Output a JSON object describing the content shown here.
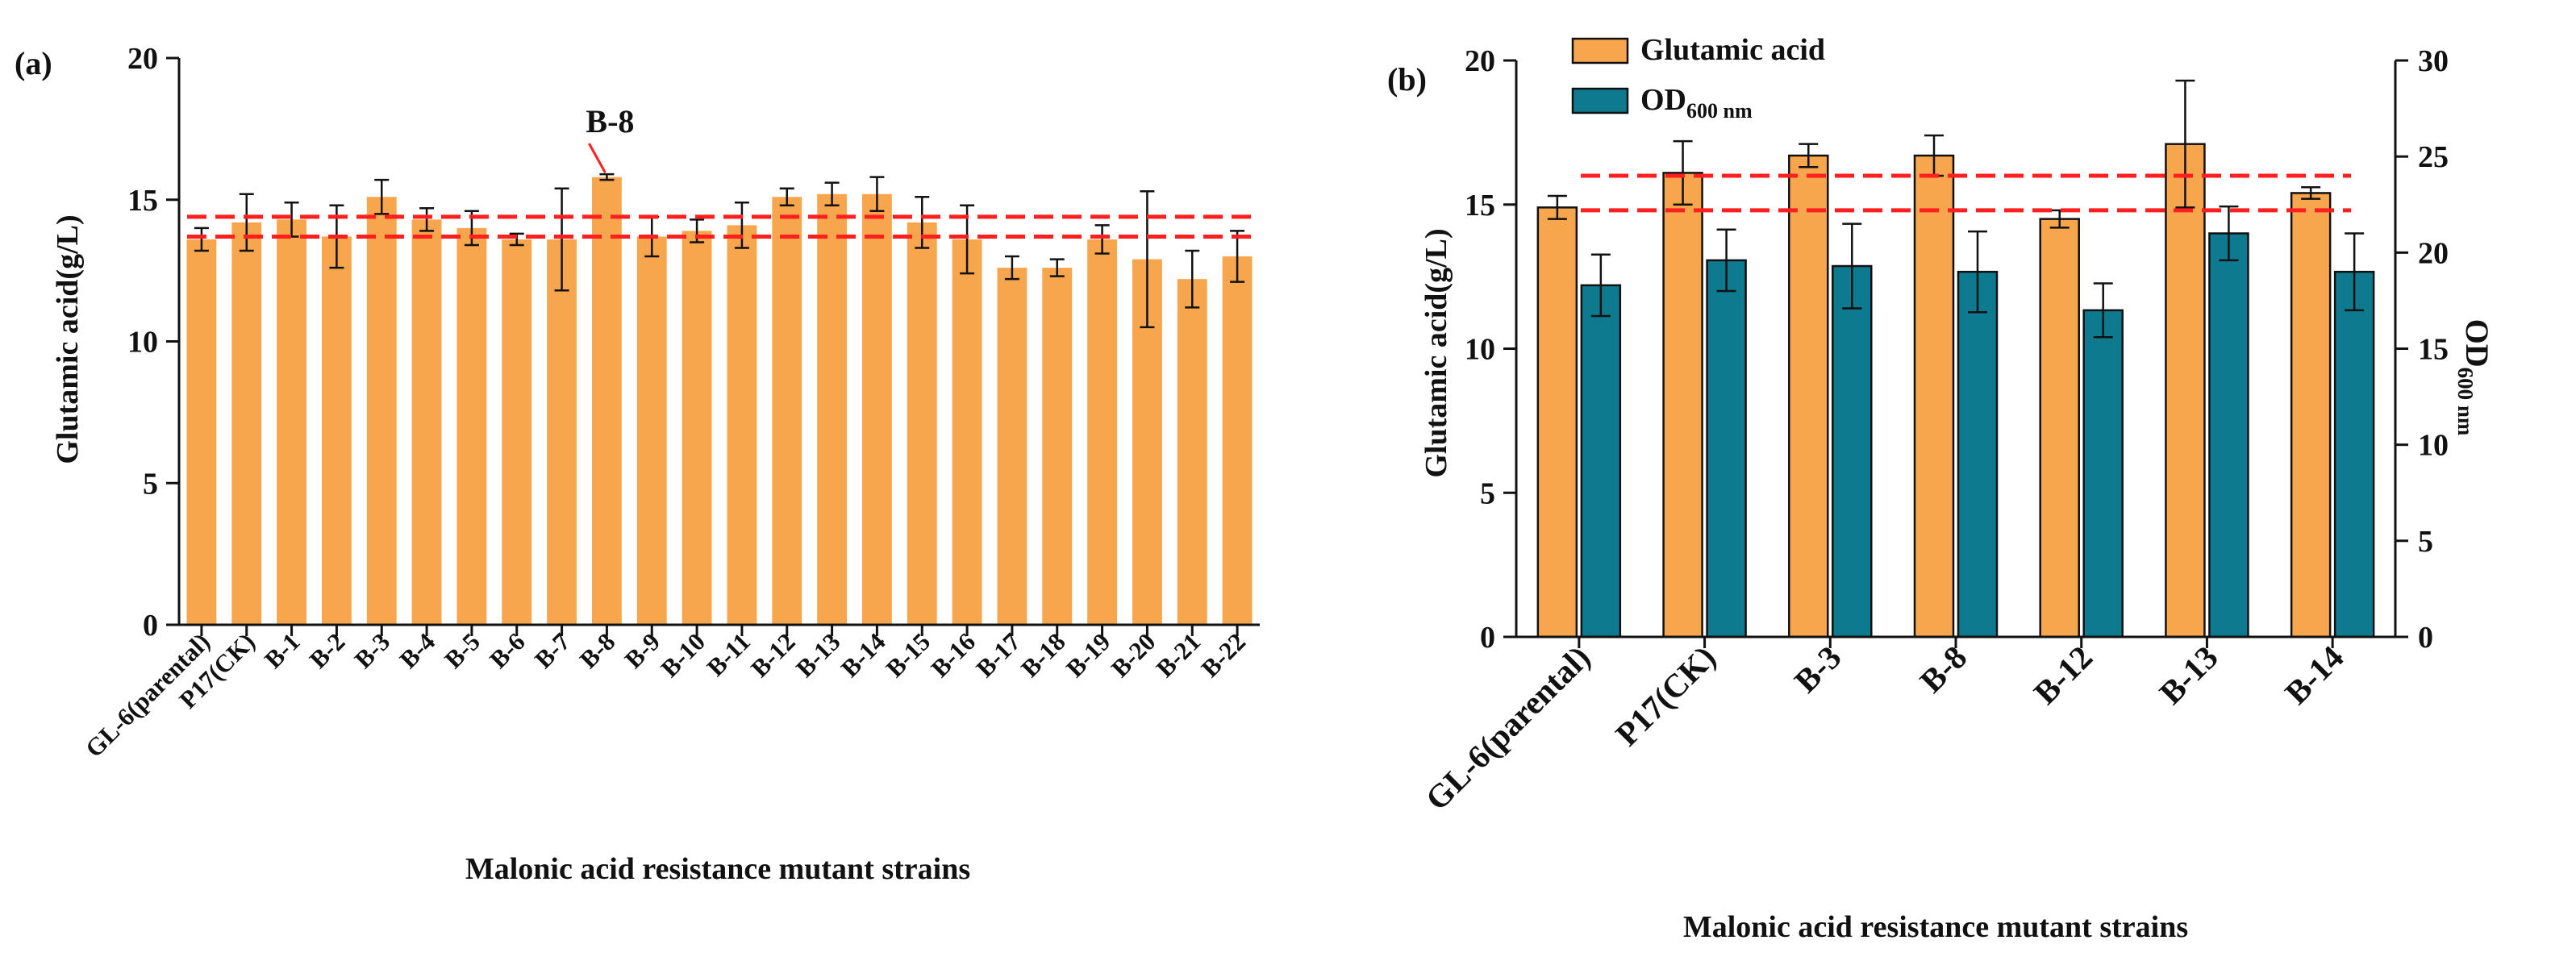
{
  "colors": {
    "orange": "#F8A64D",
    "teal": "#0E7A90",
    "red": "#FF1F1F",
    "axis": "#111111"
  },
  "chart_data": [
    {
      "panel_label": "(a)",
      "type": "bar",
      "title": "",
      "xlabel": "Malonic acid resistance mutant strains",
      "ylabel": "Glutamic acid(g/L)",
      "ylim": [
        0,
        20
      ],
      "yticks": [
        "0",
        "5",
        "10",
        "15",
        "20"
      ],
      "categories": [
        "GL-6(parental)",
        "P17(CK)",
        "B-1",
        "B-2",
        "B-3",
        "B-4",
        "B-5",
        "B-6",
        "B-7",
        "B-8",
        "B-9",
        "B-10",
        "B-11",
        "B-12",
        "B-13",
        "B-14",
        "B-15",
        "B-16",
        "B-17",
        "B-18",
        "B-19",
        "B-20",
        "B-21",
        "B-22"
      ],
      "series": [
        {
          "name": "Glutamic acid",
          "color_key": "orange",
          "values": [
            13.6,
            14.2,
            14.3,
            13.7,
            15.1,
            14.3,
            14.0,
            13.6,
            13.6,
            15.8,
            13.7,
            13.9,
            14.1,
            15.1,
            15.2,
            15.2,
            14.2,
            13.6,
            12.6,
            12.6,
            13.6,
            12.9,
            12.2,
            13.0
          ],
          "errors": [
            0.4,
            1.0,
            0.6,
            1.1,
            0.6,
            0.4,
            0.6,
            0.2,
            1.8,
            0.1,
            0.7,
            0.4,
            0.8,
            0.3,
            0.4,
            0.6,
            0.9,
            1.2,
            0.4,
            0.3,
            0.5,
            2.4,
            1.0,
            0.9
          ]
        }
      ],
      "reference_lines": [
        14.4,
        13.7
      ],
      "annotation": {
        "text": "B-8",
        "category": "B-8"
      }
    },
    {
      "panel_label": "(b)",
      "type": "bar",
      "title": "",
      "xlabel": "Malonic acid resistance mutant strains",
      "ylabel": "Glutamic acid(g/L)",
      "y2label_main": "OD",
      "y2label_sub": "600 nm",
      "ylim": [
        0,
        20
      ],
      "yticks": [
        "0",
        "5",
        "10",
        "15",
        "20"
      ],
      "y2lim": [
        0,
        30
      ],
      "y2ticks": [
        "0",
        "5",
        "10",
        "15",
        "20",
        "25",
        "30"
      ],
      "categories": [
        "GL-6(parental)",
        "P17(CK)",
        "B-3",
        "B-8",
        "B-12",
        "B-13",
        "B-14"
      ],
      "legend": {
        "position": "top-left",
        "glutamic_label": "Glutamic acid",
        "od_label_main": "OD",
        "od_label_sub": "600 nm"
      },
      "series": [
        {
          "name": "Glutamic acid",
          "axis": "left",
          "color_key": "orange",
          "values": [
            14.9,
            16.1,
            16.7,
            16.7,
            14.5,
            17.1,
            15.4
          ],
          "errors": [
            0.4,
            1.1,
            0.4,
            0.7,
            0.3,
            2.2,
            0.2
          ]
        },
        {
          "name": "OD600 nm",
          "axis": "right",
          "color_key": "teal",
          "values": [
            18.3,
            19.6,
            19.3,
            19.0,
            17.0,
            21.0,
            19.0
          ],
          "errors": [
            1.6,
            1.6,
            2.2,
            2.1,
            1.4,
            1.4,
            2.0
          ]
        }
      ],
      "reference_lines": [
        16.0,
        14.8
      ]
    }
  ]
}
